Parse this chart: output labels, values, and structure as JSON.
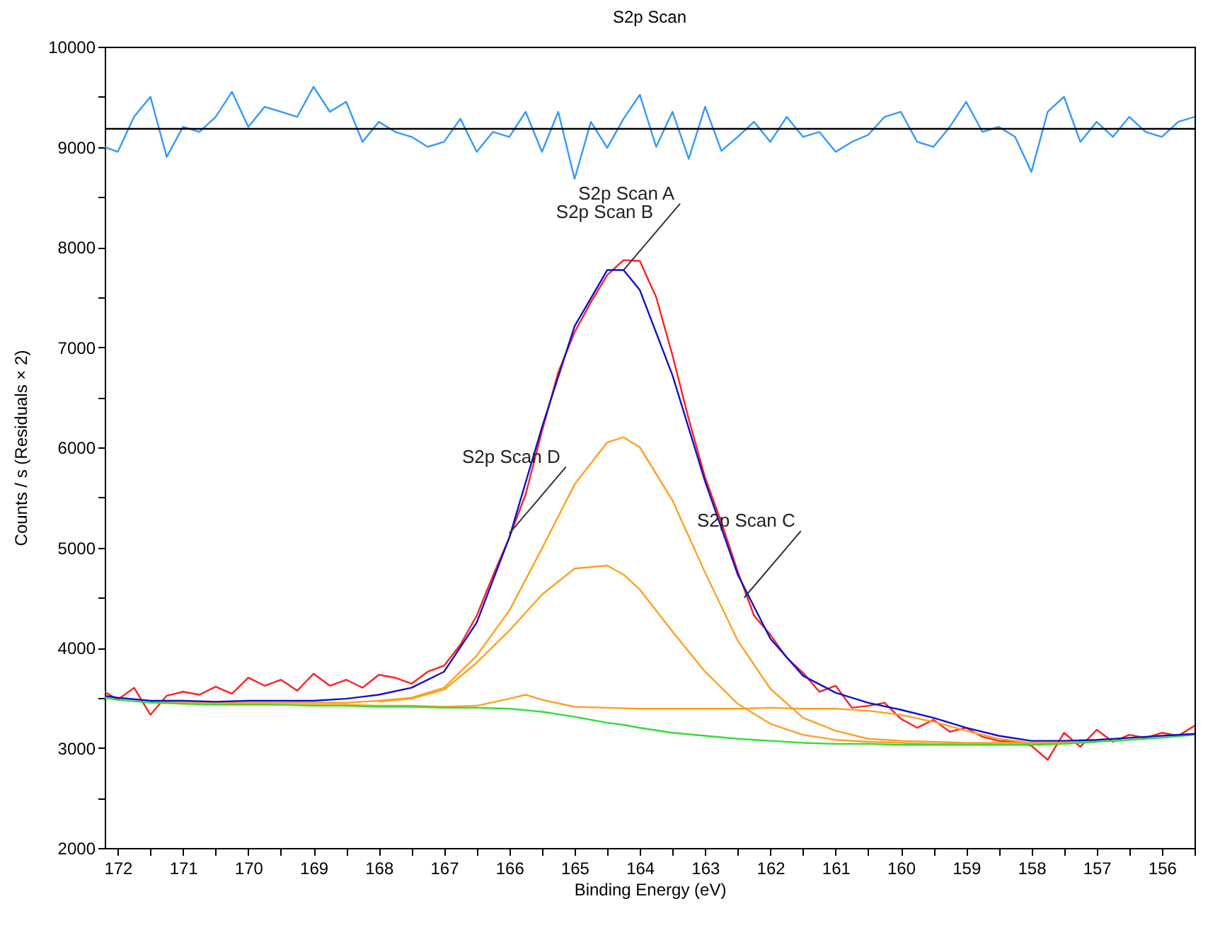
{
  "chart_data": {
    "type": "line",
    "title": "S2p Scan",
    "xlabel": "Binding Energy (eV)",
    "ylabel": "Counts / s  (Residuals × 2)",
    "x": [
      172.2,
      172,
      171.5,
      171,
      170.5,
      170,
      169.5,
      169,
      168.5,
      168,
      167.5,
      167,
      166.5,
      166,
      165.5,
      165,
      164.5,
      164.25,
      164,
      163.5,
      163,
      162.5,
      162,
      161.5,
      161,
      160.5,
      160,
      159.5,
      159,
      158.5,
      158,
      157.5,
      157,
      156.5,
      156,
      155.5
    ],
    "xlim": [
      172.2,
      155.5
    ],
    "ylim": [
      2000,
      10000
    ],
    "xticks": [
      172,
      {
        "value": 171.5,
        "label": null
      },
      171,
      {
        "value": 170.5,
        "label": null
      },
      170,
      {
        "value": 169.5,
        "label": null
      },
      169,
      {
        "value": 168.5,
        "label": null
      },
      168,
      {
        "value": 167.5,
        "label": null
      },
      167,
      {
        "value": 166.5,
        "label": null
      },
      166,
      {
        "value": 165.5,
        "label": null
      },
      165,
      {
        "value": 164.5,
        "label": null
      },
      164,
      {
        "value": 163.5,
        "label": null
      },
      163,
      {
        "value": 162.5,
        "label": null
      },
      162,
      {
        "value": 161.5,
        "label": null
      },
      161,
      {
        "value": 160.5,
        "label": null
      },
      160,
      {
        "value": 159.5,
        "label": null
      },
      159,
      {
        "value": 158.5,
        "label": null
      },
      158,
      {
        "value": 157.5,
        "label": null
      },
      157,
      {
        "value": 156.5,
        "label": null
      },
      156,
      {
        "value": 155.5,
        "label": null
      }
    ],
    "yticks": [
      2000,
      {
        "value": 2500,
        "label": null
      },
      3000,
      {
        "value": 3500,
        "label": null
      },
      4000,
      {
        "value": 4500,
        "label": null
      },
      5000,
      {
        "value": 5500,
        "label": null
      },
      6000,
      {
        "value": 6500,
        "label": null
      },
      7000,
      {
        "value": 7500,
        "label": null
      },
      8000,
      {
        "value": 8500,
        "label": null
      },
      9000,
      {
        "value": 9500,
        "label": null
      },
      10000
    ],
    "series": [
      {
        "color": "#3399ff",
        "x": [
          172.2,
          172,
          171.75,
          171.5,
          171.25,
          171,
          170.75,
          170.5,
          170.25,
          170,
          169.75,
          169.5,
          169.25,
          169,
          168.75,
          168.5,
          168.25,
          168,
          167.75,
          167.5,
          167.25,
          167,
          166.75,
          166.5,
          166.25,
          166,
          165.75,
          165.5,
          165.25,
          165,
          164.75,
          164.5,
          164.25,
          164,
          163.75,
          163.5,
          163.25,
          163,
          162.75,
          162.5,
          162.25,
          162,
          161.75,
          161.5,
          161.25,
          161,
          160.75,
          160.5,
          160.25,
          160,
          159.75,
          159.5,
          159.25,
          159,
          158.75,
          158.5,
          158.25,
          158,
          157.75,
          157.5,
          157.25,
          157,
          156.75,
          156.5,
          156.25,
          156,
          155.75,
          155.5
        ],
        "values": [
          9000,
          8950,
          9300,
          9500,
          8900,
          9200,
          9150,
          9300,
          9550,
          9200,
          9400,
          9350,
          9300,
          9600,
          9350,
          9450,
          9050,
          9250,
          9150,
          9100,
          9000,
          9050,
          9280,
          8950,
          9150,
          9100,
          9350,
          8950,
          9350,
          8680,
          9250,
          8990,
          9280,
          9520,
          9000,
          9350,
          8880,
          9400,
          8960,
          9100,
          9250,
          9050,
          9300,
          9100,
          9150,
          8950,
          9050,
          9120,
          9300,
          9350,
          9050,
          9000,
          9200,
          9450,
          9150,
          9200,
          9100,
          8750,
          9350,
          9500,
          9050,
          9250,
          9100,
          9300,
          9150,
          9100,
          9250,
          9300
        ]
      },
      {
        "color": "#ff2020",
        "x": [
          172.2,
          172,
          171.75,
          171.5,
          171.25,
          171,
          170.75,
          170.5,
          170.25,
          170,
          169.75,
          169.5,
          169.25,
          169,
          168.75,
          168.5,
          168.25,
          168,
          167.75,
          167.5,
          167.25,
          167,
          166.75,
          166.5,
          166.25,
          166,
          165.75,
          165.5,
          165.25,
          165,
          164.75,
          164.5,
          164.25,
          164,
          163.75,
          163.5,
          163.25,
          163,
          162.75,
          162.5,
          162.25,
          162,
          161.75,
          161.5,
          161.25,
          161,
          160.75,
          160.5,
          160.25,
          160,
          159.75,
          159.5,
          159.25,
          159,
          158.75,
          158.5,
          158.25,
          158,
          157.75,
          157.5,
          157.25,
          157,
          156.75,
          156.5,
          156.25,
          156,
          155.75,
          155.5
        ],
        "values": [
          3560,
          3480,
          3600,
          3330,
          3520,
          3560,
          3530,
          3610,
          3540,
          3700,
          3620,
          3680,
          3570,
          3740,
          3620,
          3680,
          3600,
          3730,
          3700,
          3640,
          3760,
          3820,
          4030,
          4320,
          4720,
          5100,
          5530,
          6160,
          6750,
          7150,
          7450,
          7720,
          7870,
          7860,
          7500,
          6920,
          6280,
          5700,
          5250,
          4760,
          4320,
          4130,
          3900,
          3750,
          3560,
          3620,
          3400,
          3420,
          3450,
          3290,
          3200,
          3280,
          3160,
          3200,
          3110,
          3070,
          3060,
          3020,
          2880,
          3150,
          3010,
          3180,
          3060,
          3130,
          3100,
          3150,
          3120,
          3220
        ]
      },
      {
        "color": "#ffa020",
        "values": [
          null,
          null,
          3460,
          3450,
          3450,
          3450,
          3450,
          3450,
          3450,
          3470,
          3500,
          3600,
          3920,
          4370,
          4990,
          5630,
          6050,
          6100,
          6000,
          5470,
          4750,
          4070,
          3590,
          3300,
          3170,
          3090,
          3070,
          3060,
          3050,
          3050,
          3050,
          3050,
          3070,
          null,
          null,
          null
        ]
      },
      {
        "color": "#ffa020",
        "values": [
          null,
          null,
          null,
          null,
          null,
          null,
          null,
          null,
          null,
          3460,
          3490,
          3580,
          3850,
          4170,
          4530,
          4790,
          4820,
          4730,
          4580,
          4160,
          3760,
          3440,
          3240,
          3130,
          3080,
          3060,
          3050,
          3040,
          3040,
          3040,
          3040,
          3050,
          3070,
          null,
          null,
          null
        ]
      },
      {
        "color": "#ffa020",
        "x": [
          171.5,
          171,
          170.5,
          170,
          169.5,
          169,
          168.5,
          168,
          167.5,
          167,
          166.5,
          166,
          165.75,
          165.5,
          165,
          164.5,
          164,
          163.5,
          163,
          162.5,
          162,
          161.5,
          161,
          160.5,
          160,
          159.5,
          159,
          158.5,
          158,
          157.5,
          157
        ],
        "values": [
          3460,
          3450,
          3440,
          3440,
          3430,
          3430,
          3430,
          3420,
          3420,
          3410,
          3420,
          3490,
          3530,
          3480,
          3410,
          3400,
          3390,
          3390,
          3390,
          3390,
          3400,
          3390,
          3390,
          3370,
          3330,
          3260,
          3170,
          3090,
          3050,
          3050,
          3060
        ]
      },
      {
        "color": "#33dd33",
        "values": [
          3500,
          3480,
          3450,
          3440,
          3430,
          3430,
          3430,
          3420,
          3420,
          3410,
          3410,
          3400,
          3400,
          3390,
          3360,
          3310,
          3250,
          3230,
          3200,
          3150,
          3120,
          3090,
          3070,
          3050,
          3040,
          3040,
          3030,
          3030,
          3030,
          3030,
          3030,
          3040,
          3060,
          3080,
          3100,
          3130
        ]
      },
      {
        "color": "#1010cc",
        "values": [
          3520,
          3500,
          3470,
          3470,
          3460,
          3470,
          3470,
          3470,
          3490,
          3530,
          3600,
          3760,
          4250,
          5100,
          6200,
          7210,
          7770,
          7770,
          7570,
          6720,
          5660,
          4730,
          4090,
          3720,
          3550,
          3450,
          3380,
          3300,
          3200,
          3120,
          3070,
          3070,
          3080,
          3100,
          3120,
          3140
        ]
      }
    ],
    "ref_lines": [
      {
        "axis": "y",
        "value": 9180,
        "color": "#000000"
      }
    ],
    "annotations": [
      {
        "text": "S2p Scan A",
        "x": 164.25,
        "y": 7770
      },
      {
        "text": "S2p Scan B",
        "x": 164.25,
        "y": 7770
      },
      {
        "text": "S2p Scan C",
        "x": 162.4,
        "y": 4500
      },
      {
        "text": "S2p Scan D",
        "x": 166,
        "y": 5140
      }
    ]
  }
}
